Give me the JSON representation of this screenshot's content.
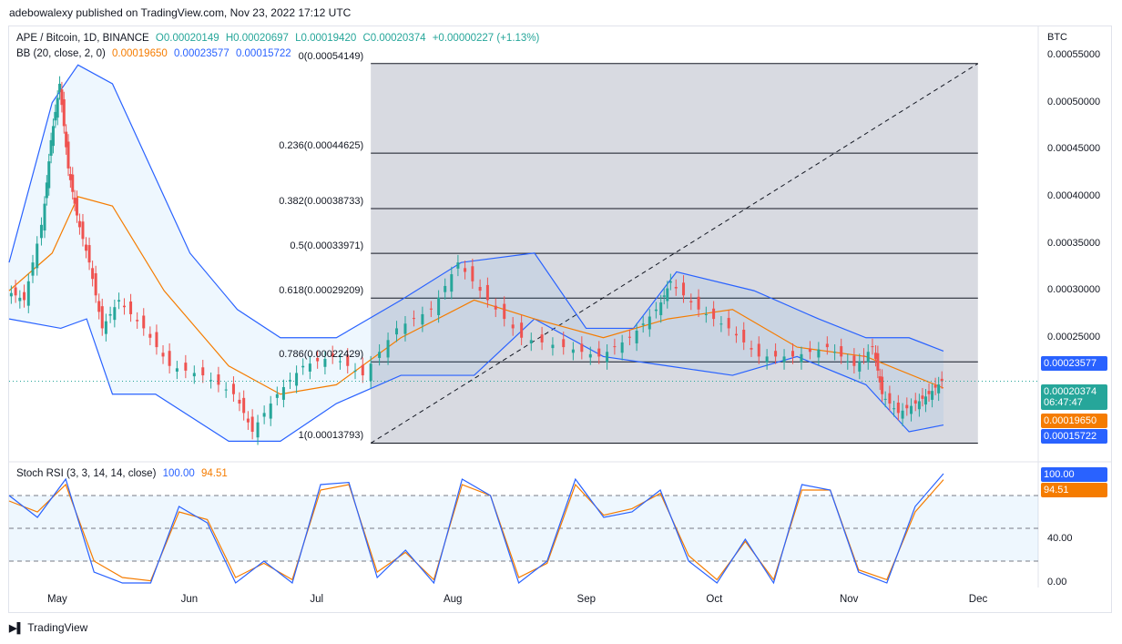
{
  "header": {
    "published": "adebowalexy published on TradingView.com, Nov 23, 2022 17:12 UTC"
  },
  "legend": {
    "symbol": "APE / Bitcoin, 1D, BINANCE",
    "open": "O0.00020149",
    "high": "H0.00020697",
    "low": "L0.00019420",
    "close": "C0.00020374",
    "change": "+0.00000227 (+1.13%)",
    "bb_label": "BB (20, close, 2, 0)",
    "bb_mid": "0.00019650",
    "bb_upper": "0.00023577",
    "bb_lower": "0.00015722",
    "rsi_label": "Stoch RSI (3, 3, 14, 14, close)",
    "rsi_k": "100.00",
    "rsi_d": "94.51"
  },
  "axis": {
    "currency": "BTC",
    "price_ticks": [
      "0.00055000",
      "0.00050000",
      "0.00045000",
      "0.00040000",
      "0.00035000",
      "0.00030000",
      "0.00025000"
    ],
    "rsi_ticks": [
      "40.00",
      "0.00"
    ],
    "months": [
      "May",
      "Jun",
      "Jul",
      "Aug",
      "Sep",
      "Oct",
      "Nov",
      "Dec"
    ]
  },
  "tags": {
    "bb_upper": "0.00023577",
    "price": "0.00020374",
    "countdown": "06:47:47",
    "bb_mid": "0.00019650",
    "bb_lower": "0.00015722",
    "rsi_k": "100.00",
    "rsi_d": "94.51"
  },
  "fib": [
    {
      "label": "0(0.00054149)",
      "price": 0.00054149
    },
    {
      "label": "0.236(0.00044625)",
      "price": 0.00044625
    },
    {
      "label": "0.382(0.00038733)",
      "price": 0.00038733
    },
    {
      "label": "0.5(0.00033971)",
      "price": 0.00033971
    },
    {
      "label": "0.618(0.00029209)",
      "price": 0.00029209
    },
    {
      "label": "0.786(0.00022429)",
      "price": 0.00022429
    },
    {
      "label": "1(0.00013793)",
      "price": 0.00013793
    }
  ],
  "footer": {
    "brand": "TradingView"
  },
  "colors": {
    "up": "#26a69a",
    "down": "#ef5350",
    "band": "#2962ff",
    "basis": "#f57c00",
    "fib_fill": "#d1d4dc"
  },
  "chart_data": {
    "type": "candlestick",
    "symbol": "APE / Bitcoin",
    "timeframe": "1D",
    "y_range": [
      0.00012,
      0.00058
    ],
    "x_range": [
      "2022-04-20",
      "2022-12-15"
    ],
    "ohlc_last": {
      "open": 0.00020149,
      "high": 0.00020697,
      "low": 0.0001942,
      "close": 0.00020374
    },
    "close_series": [
      {
        "x": "2022-04-20",
        "y": 0.0003
      },
      {
        "x": "2022-04-24",
        "y": 0.00029
      },
      {
        "x": "2022-04-28",
        "y": 0.00037
      },
      {
        "x": "2022-04-30",
        "y": 0.00046
      },
      {
        "x": "2022-05-02",
        "y": 0.00052
      },
      {
        "x": "2022-05-04",
        "y": 0.00043
      },
      {
        "x": "2022-05-06",
        "y": 0.00038
      },
      {
        "x": "2022-05-09",
        "y": 0.00033
      },
      {
        "x": "2022-05-12",
        "y": 0.00026
      },
      {
        "x": "2022-05-16",
        "y": 0.00029
      },
      {
        "x": "2022-05-22",
        "y": 0.00026
      },
      {
        "x": "2022-05-28",
        "y": 0.00022
      },
      {
        "x": "2022-06-05",
        "y": 0.00021
      },
      {
        "x": "2022-06-12",
        "y": 0.00019
      },
      {
        "x": "2022-06-16",
        "y": 0.00015
      },
      {
        "x": "2022-06-22",
        "y": 0.00019
      },
      {
        "x": "2022-06-28",
        "y": 0.00022
      },
      {
        "x": "2022-07-05",
        "y": 0.00023
      },
      {
        "x": "2022-07-12",
        "y": 0.00021
      },
      {
        "x": "2022-07-20",
        "y": 0.00026
      },
      {
        "x": "2022-07-28",
        "y": 0.00028
      },
      {
        "x": "2022-08-03",
        "y": 0.00033
      },
      {
        "x": "2022-08-10",
        "y": 0.00029
      },
      {
        "x": "2022-08-18",
        "y": 0.00025
      },
      {
        "x": "2022-08-28",
        "y": 0.00024
      },
      {
        "x": "2022-09-05",
        "y": 0.00023
      },
      {
        "x": "2022-09-12",
        "y": 0.00025
      },
      {
        "x": "2022-09-18",
        "y": 0.00028
      },
      {
        "x": "2022-09-21",
        "y": 0.00031
      },
      {
        "x": "2022-09-28",
        "y": 0.00028
      },
      {
        "x": "2022-10-05",
        "y": 0.00026
      },
      {
        "x": "2022-10-12",
        "y": 0.00023
      },
      {
        "x": "2022-10-20",
        "y": 0.00023
      },
      {
        "x": "2022-10-28",
        "y": 0.00024
      },
      {
        "x": "2022-11-03",
        "y": 0.00022
      },
      {
        "x": "2022-11-07",
        "y": 0.00024
      },
      {
        "x": "2022-11-09",
        "y": 0.00019
      },
      {
        "x": "2022-11-13",
        "y": 0.00017
      },
      {
        "x": "2022-11-17",
        "y": 0.00018
      },
      {
        "x": "2022-11-20",
        "y": 0.00019
      },
      {
        "x": "2022-11-23",
        "y": 0.00020374
      }
    ],
    "bb_upper_series": [
      {
        "x": "2022-04-20",
        "y": 0.00033
      },
      {
        "x": "2022-04-30",
        "y": 0.0005
      },
      {
        "x": "2022-05-06",
        "y": 0.00054
      },
      {
        "x": "2022-05-14",
        "y": 0.00052
      },
      {
        "x": "2022-05-22",
        "y": 0.00044
      },
      {
        "x": "2022-06-01",
        "y": 0.00034
      },
      {
        "x": "2022-06-12",
        "y": 0.00028
      },
      {
        "x": "2022-06-22",
        "y": 0.00025
      },
      {
        "x": "2022-07-05",
        "y": 0.00025
      },
      {
        "x": "2022-07-20",
        "y": 0.00029
      },
      {
        "x": "2022-08-03",
        "y": 0.00033
      },
      {
        "x": "2022-08-20",
        "y": 0.00034
      },
      {
        "x": "2022-09-01",
        "y": 0.00026
      },
      {
        "x": "2022-09-12",
        "y": 0.00026
      },
      {
        "x": "2022-09-22",
        "y": 0.00032
      },
      {
        "x": "2022-10-10",
        "y": 0.0003
      },
      {
        "x": "2022-10-25",
        "y": 0.00027
      },
      {
        "x": "2022-11-05",
        "y": 0.00025
      },
      {
        "x": "2022-11-15",
        "y": 0.00025
      },
      {
        "x": "2022-11-23",
        "y": 0.00023577
      }
    ],
    "bb_basis_series": [
      {
        "x": "2022-04-20",
        "y": 0.0003
      },
      {
        "x": "2022-04-30",
        "y": 0.00034
      },
      {
        "x": "2022-05-06",
        "y": 0.0004
      },
      {
        "x": "2022-05-14",
        "y": 0.00039
      },
      {
        "x": "2022-05-26",
        "y": 0.0003
      },
      {
        "x": "2022-06-10",
        "y": 0.00022
      },
      {
        "x": "2022-06-22",
        "y": 0.00019
      },
      {
        "x": "2022-07-05",
        "y": 0.0002
      },
      {
        "x": "2022-07-20",
        "y": 0.00025
      },
      {
        "x": "2022-08-06",
        "y": 0.00029
      },
      {
        "x": "2022-08-20",
        "y": 0.00027
      },
      {
        "x": "2022-09-05",
        "y": 0.00025
      },
      {
        "x": "2022-09-20",
        "y": 0.00027
      },
      {
        "x": "2022-10-05",
        "y": 0.00028
      },
      {
        "x": "2022-10-20",
        "y": 0.00024
      },
      {
        "x": "2022-11-05",
        "y": 0.00023
      },
      {
        "x": "2022-11-23",
        "y": 0.0001965
      }
    ],
    "bb_lower_series": [
      {
        "x": "2022-04-20",
        "y": 0.00027
      },
      {
        "x": "2022-05-02",
        "y": 0.00026
      },
      {
        "x": "2022-05-08",
        "y": 0.00027
      },
      {
        "x": "2022-05-14",
        "y": 0.00019
      },
      {
        "x": "2022-05-24",
        "y": 0.00019
      },
      {
        "x": "2022-06-10",
        "y": 0.00014
      },
      {
        "x": "2022-06-22",
        "y": 0.00014
      },
      {
        "x": "2022-07-05",
        "y": 0.00018
      },
      {
        "x": "2022-07-20",
        "y": 0.00021
      },
      {
        "x": "2022-08-06",
        "y": 0.00021
      },
      {
        "x": "2022-08-20",
        "y": 0.00027
      },
      {
        "x": "2022-09-05",
        "y": 0.00023
      },
      {
        "x": "2022-09-20",
        "y": 0.00022
      },
      {
        "x": "2022-10-05",
        "y": 0.00021
      },
      {
        "x": "2022-10-20",
        "y": 0.00023
      },
      {
        "x": "2022-11-05",
        "y": 0.0002
      },
      {
        "x": "2022-11-15",
        "y": 0.00015
      },
      {
        "x": "2022-11-23",
        "y": 0.00015722
      }
    ],
    "stoch_rsi": {
      "k": 100.0,
      "d": 94.51,
      "k_series": [
        80,
        60,
        95,
        10,
        0,
        0,
        70,
        55,
        0,
        20,
        0,
        90,
        92,
        5,
        30,
        0,
        95,
        80,
        0,
        20,
        95,
        60,
        65,
        85,
        20,
        0,
        40,
        0,
        90,
        85,
        10,
        0,
        70,
        100
      ],
      "d_series": [
        75,
        65,
        90,
        20,
        5,
        2,
        65,
        58,
        5,
        18,
        3,
        85,
        90,
        10,
        28,
        3,
        90,
        80,
        5,
        18,
        90,
        62,
        68,
        82,
        25,
        3,
        38,
        3,
        85,
        85,
        12,
        3,
        65,
        94.51
      ]
    }
  }
}
